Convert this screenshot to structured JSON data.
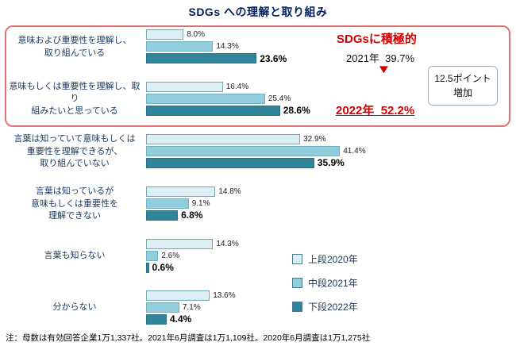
{
  "title": "SDGs への理解と取り組み",
  "footnote": "注：母数は有効回答企業1万1,337社。2021年6月調査は1万1,109社。2020年6月調査は1万1,275社",
  "colors": {
    "title_navy": "#002060",
    "accent_red": "#d40000",
    "highlight_border_pink": "#e57373",
    "label_navy": "#17375e"
  },
  "chart_data": {
    "type": "bar",
    "orientation": "horizontal",
    "xlim": [
      0,
      45
    ],
    "unit": "%",
    "categories": [
      [
        "意味および重要性を理解し、",
        "取り組んでいる"
      ],
      [
        "意味もしくは重要性を理解し、取り",
        "組みたいと思っている"
      ],
      [
        "言葉は知っていて意味もしくは",
        "重要性を理解できるが、",
        "取り組んでいない"
      ],
      [
        "言葉は知っているが",
        "意味もしくは重要性を",
        "理解できない"
      ],
      [
        "言葉も知らない"
      ],
      [
        "分からない"
      ]
    ],
    "series": [
      {
        "name": "上段2020年",
        "year": "2020",
        "color": "#dbeef3",
        "border": "#76a5b8",
        "values": [
          8.0,
          16.4,
          32.9,
          14.8,
          14.3,
          13.6
        ]
      },
      {
        "name": "中段2021年",
        "year": "2021",
        "color": "#92cddc",
        "border": "#6fb1c4",
        "values": [
          14.3,
          25.4,
          41.4,
          9.1,
          2.6,
          7.1
        ]
      },
      {
        "name": "下段2022年",
        "year": "2022",
        "color": "#31859b",
        "border": "#2a7287",
        "values": [
          23.6,
          28.6,
          35.9,
          6.8,
          0.6,
          4.4
        ]
      }
    ],
    "legend_position": "right"
  },
  "annotation": {
    "headline": "SDGsに積極的",
    "line_2021": "2021年  39.7%",
    "arrow": "▼",
    "line_2022": "2022年  52.2%",
    "side_box_lines": [
      "12.5ポイント",
      "増加"
    ]
  }
}
